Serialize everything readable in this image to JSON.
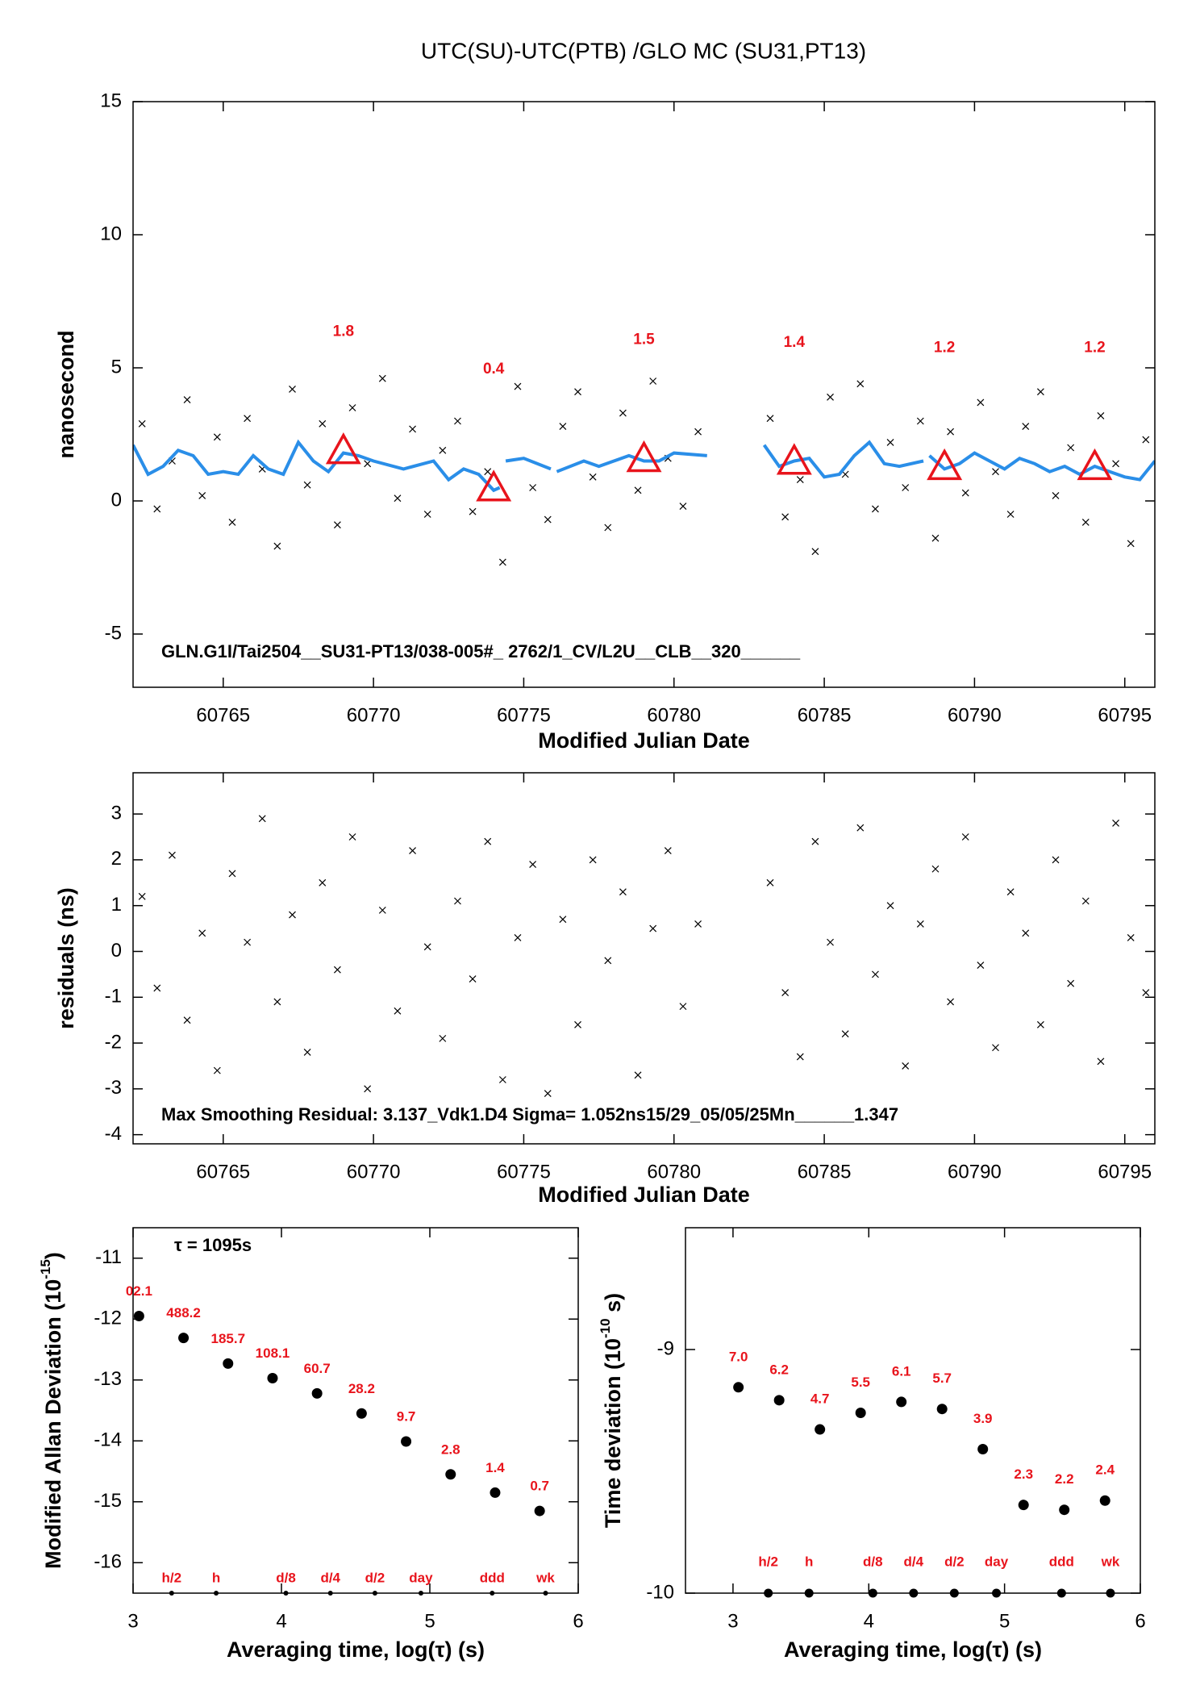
{
  "chart_data": [
    {
      "type": "scatter",
      "title": "UTC(SU)-UTC(PTB)  /GLO  MC  (SU31,PT13)",
      "xlabel": "Modified Julian Date",
      "ylabel": "nanosecond",
      "annotation": "GLN.G1I/Tai2504__SU31-PT13/038-005#_  2762/1_CV/L2U__CLB__320______",
      "xlim": [
        60762,
        60796
      ],
      "ylim": [
        -7,
        15
      ],
      "xticks": [
        60765,
        60770,
        60775,
        60780,
        60785,
        60790,
        60795
      ],
      "yticks": [
        -5,
        0,
        5,
        10,
        15
      ],
      "series": [
        {
          "marker": "x",
          "color": "#000000",
          "x": [
            60762.3,
            60762.8,
            60763.3,
            60763.8,
            60764.3,
            60764.8,
            60765.3,
            60765.8,
            60766.3,
            60766.8,
            60767.3,
            60767.8,
            60768.3,
            60768.8,
            60769.3,
            60769.8,
            60770.3,
            60770.8,
            60771.3,
            60771.8,
            60772.3,
            60772.8,
            60773.3,
            60773.8,
            60774.3,
            60774.8,
            60775.3,
            60775.8,
            60776.3,
            60776.8,
            60777.3,
            60777.8,
            60778.3,
            60778.8,
            60779.3,
            60779.8,
            60780.3,
            60780.8,
            60783.2,
            60783.7,
            60784.2,
            60784.7,
            60785.2,
            60785.7,
            60786.2,
            60786.7,
            60787.2,
            60787.7,
            60788.2,
            60788.7,
            60789.2,
            60789.7,
            60790.2,
            60790.7,
            60791.2,
            60791.7,
            60792.2,
            60792.7,
            60793.2,
            60793.7,
            60794.2,
            60794.7,
            60795.2,
            60795.7
          ],
          "values": [
            2.9,
            -0.3,
            1.5,
            3.8,
            0.2,
            2.4,
            -0.8,
            3.1,
            1.2,
            -1.7,
            4.2,
            0.6,
            2.9,
            -0.9,
            3.5,
            1.4,
            4.6,
            0.1,
            2.7,
            -0.5,
            1.9,
            3.0,
            -0.4,
            1.1,
            -2.3,
            4.3,
            0.5,
            -0.7,
            2.8,
            4.1,
            0.9,
            -1.0,
            3.3,
            0.4,
            4.5,
            1.6,
            -0.2,
            2.6,
            3.1,
            -0.6,
            0.8,
            -1.9,
            3.9,
            1.0,
            4.4,
            -0.3,
            2.2,
            0.5,
            3.0,
            -1.4,
            2.6,
            0.3,
            3.7,
            1.1,
            -0.5,
            2.8,
            4.1,
            0.2,
            2.0,
            -0.8,
            3.2,
            1.4,
            -1.6,
            2.3
          ]
        },
        {
          "marker": "line",
          "color": "#2a8ee8",
          "x": [
            60762,
            60762.5,
            60763,
            60763.5,
            60764,
            60764.5,
            60765,
            60765.5,
            60766,
            60766.5,
            60767,
            60767.5,
            60768,
            60768.5,
            60769,
            60769.5,
            60770,
            60771,
            60772,
            60772.5,
            60773,
            60773.5,
            60774,
            60774.2,
            60774.3,
            60774.4,
            60775,
            60775.9,
            60776.0,
            60776.1,
            60777,
            60777.5,
            60778,
            60778.5,
            60779,
            60779.5,
            60780,
            60781.1,
            60782,
            60783,
            60783.5,
            60784,
            60784.5,
            60785,
            60785.5,
            60786,
            60786.5,
            60787,
            60787.5,
            60788.3,
            60788.4,
            60788.5,
            60789,
            60789.5,
            60790,
            60790.5,
            60791,
            60791.5,
            60792,
            60792.5,
            60793,
            60793.5,
            60794,
            60794.5,
            60795,
            60795.5,
            60796
          ],
          "values": [
            2.1,
            1.0,
            1.3,
            1.9,
            1.7,
            1.0,
            1.1,
            1.0,
            1.7,
            1.2,
            1.0,
            2.2,
            1.5,
            1.1,
            1.8,
            1.7,
            1.5,
            1.2,
            1.5,
            0.8,
            1.2,
            1.0,
            0.4,
            0.5,
            null,
            1.5,
            1.6,
            1.2,
            null,
            1.1,
            1.5,
            1.3,
            1.5,
            1.7,
            1.5,
            1.5,
            1.8,
            1.7,
            null,
            2.1,
            1.3,
            1.5,
            1.6,
            0.9,
            1.0,
            1.7,
            2.2,
            1.4,
            1.3,
            1.5,
            null,
            1.7,
            1.2,
            1.4,
            1.8,
            1.5,
            1.2,
            1.6,
            1.4,
            1.1,
            1.3,
            1.0,
            1.3,
            1.1,
            0.9,
            0.8,
            1.5
          ]
        },
        {
          "marker": "triangle",
          "color": "#e8141c",
          "x": [
            60769,
            60774,
            60779,
            60784,
            60789,
            60794
          ],
          "values": [
            1.8,
            0.4,
            1.5,
            1.4,
            1.2,
            1.2
          ],
          "value_labels": [
            "1.8",
            "0.4",
            "1.5",
            "1.4",
            "1.2",
            "1.2"
          ]
        }
      ]
    },
    {
      "type": "scatter",
      "xlabel": "Modified Julian Date",
      "ylabel": "residuals (ns)",
      "annotation": "Max Smoothing Residual: 3.137_Vdk1.D4  Sigma= 1.052ns15/29_05/05/25Mn______1.347",
      "xlim": [
        60762,
        60796
      ],
      "ylim": [
        -4.2,
        3.9
      ],
      "xticks": [
        60765,
        60770,
        60775,
        60780,
        60785,
        60790,
        60795
      ],
      "yticks": [
        -4,
        -3,
        -2,
        -1,
        0,
        1,
        2,
        3
      ],
      "series": [
        {
          "marker": "x",
          "color": "#000000",
          "x": [
            60762.3,
            60762.8,
            60763.3,
            60763.8,
            60764.3,
            60764.8,
            60765.3,
            60765.8,
            60766.3,
            60766.8,
            60767.3,
            60767.8,
            60768.3,
            60768.8,
            60769.3,
            60769.8,
            60770.3,
            60770.8,
            60771.3,
            60771.8,
            60772.3,
            60772.8,
            60773.3,
            60773.8,
            60774.3,
            60774.8,
            60775.3,
            60775.8,
            60776.3,
            60776.8,
            60777.3,
            60777.8,
            60778.3,
            60778.8,
            60779.3,
            60779.8,
            60780.3,
            60780.8,
            60783.2,
            60783.7,
            60784.2,
            60784.7,
            60785.2,
            60785.7,
            60786.2,
            60786.7,
            60787.2,
            60787.7,
            60788.2,
            60788.7,
            60789.2,
            60789.7,
            60790.2,
            60790.7,
            60791.2,
            60791.7,
            60792.2,
            60792.7,
            60793.2,
            60793.7,
            60794.2,
            60794.7,
            60795.2,
            60795.7
          ],
          "values": [
            1.2,
            -0.8,
            2.1,
            -1.5,
            0.4,
            -2.6,
            1.7,
            0.2,
            2.9,
            -1.1,
            0.8,
            -2.2,
            1.5,
            -0.4,
            2.5,
            -3.0,
            0.9,
            -1.3,
            2.2,
            0.1,
            -1.9,
            1.1,
            -0.6,
            2.4,
            -2.8,
            0.3,
            1.9,
            -3.1,
            0.7,
            -1.6,
            2.0,
            -0.2,
            1.3,
            -2.7,
            0.5,
            2.2,
            -1.2,
            0.6,
            1.5,
            -0.9,
            -2.3,
            2.4,
            0.2,
            -1.8,
            2.7,
            -0.5,
            1.0,
            -2.5,
            0.6,
            1.8,
            -1.1,
            2.5,
            -0.3,
            -2.1,
            1.3,
            0.4,
            -1.6,
            2.0,
            -0.7,
            1.1,
            -2.4,
            2.8,
            0.3,
            -0.9
          ]
        }
      ]
    },
    {
      "type": "scatter",
      "xlabel": "Averaging time, log(τ) (s)",
      "ylabel": "Modified Allan Deviation (10",
      "ylabel_sup": "-15",
      "ylabel_end": ")",
      "annotation": "τ = 1095s",
      "xlim": [
        3,
        6
      ],
      "ylim": [
        -16.5,
        -10.5
      ],
      "xticks": [
        3,
        4,
        5,
        6
      ],
      "yticks": [
        -16,
        -15,
        -14,
        -13,
        -12,
        -11
      ],
      "series": [
        {
          "marker": "dot",
          "color": "#000000",
          "label_color": "#e8141c",
          "x": [
            3.04,
            3.34,
            3.64,
            3.94,
            4.24,
            4.54,
            4.84,
            5.14,
            5.44,
            5.74
          ],
          "values": [
            -11.95,
            -12.31,
            -12.73,
            -12.97,
            -13.22,
            -13.55,
            -14.01,
            -14.55,
            -14.85,
            -15.15
          ],
          "point_labels": [
            "02.1",
            "488.2",
            "185.7",
            "108.1",
            "60.7",
            "28.2",
            "9.7",
            "2.8",
            "1.4",
            "0.7"
          ]
        }
      ],
      "tau_marks": {
        "x": [
          3.26,
          3.56,
          4.03,
          4.33,
          4.63,
          4.94,
          5.42,
          5.78
        ],
        "labels": [
          "h/2",
          "h",
          "d/8",
          "d/4",
          "d/2",
          "day",
          "ddd",
          "wk"
        ]
      }
    },
    {
      "type": "scatter",
      "xlabel": "Averaging time, log(τ) (s)",
      "ylabel": "Time deviation (10",
      "ylabel_sup": "-10",
      "ylabel_end": " s)",
      "xlim": [
        2.65,
        6
      ],
      "ylim": [
        -10,
        -8.5
      ],
      "xticks": [
        3,
        4,
        5,
        6
      ],
      "yticks": [
        -10,
        -9
      ],
      "series": [
        {
          "marker": "dot",
          "color": "#000000",
          "label_color": "#e8141c",
          "x": [
            3.04,
            3.34,
            3.64,
            3.94,
            4.24,
            4.54,
            4.84,
            5.14,
            5.44,
            5.74
          ],
          "values": [
            -9.155,
            -9.208,
            -9.328,
            -9.26,
            -9.215,
            -9.244,
            -9.409,
            -9.638,
            -9.658,
            -9.62
          ],
          "point_labels": [
            "7.0",
            "6.2",
            "4.7",
            "5.5",
            "6.1",
            "5.7",
            "3.9",
            "2.3",
            "2.2",
            "2.4"
          ]
        }
      ],
      "tau_marks": {
        "x": [
          3.26,
          3.56,
          4.03,
          4.33,
          4.63,
          4.94,
          5.42,
          5.78
        ],
        "labels": [
          "h/2",
          "h",
          "d/8",
          "d/4",
          "d/2",
          "day",
          "ddd",
          "wk"
        ]
      }
    }
  ]
}
